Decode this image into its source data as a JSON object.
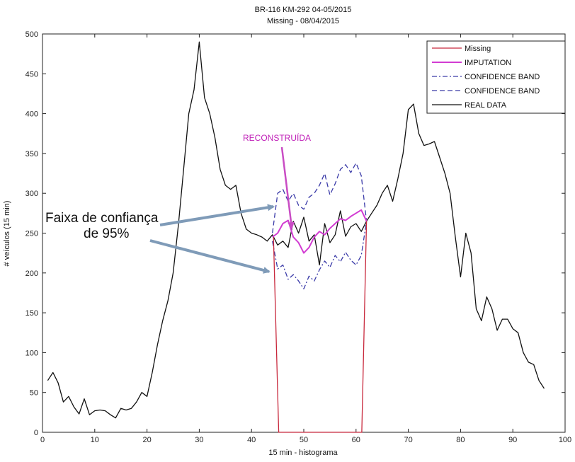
{
  "chart_data": {
    "type": "line",
    "title": "BR-116 KM-292 04-05/2015",
    "subtitle": "Missing - 08/04/2015",
    "xlabel": "15 min - histograma",
    "ylabel": "# veículos (15 min)",
    "xlim": [
      0,
      100
    ],
    "ylim": [
      0,
      500
    ],
    "xticks": [
      0,
      10,
      20,
      30,
      40,
      50,
      60,
      70,
      80,
      90,
      100
    ],
    "yticks": [
      0,
      50,
      100,
      150,
      200,
      250,
      300,
      350,
      400,
      450,
      500
    ],
    "legend_position": "top-right",
    "grid": false,
    "series": [
      {
        "name": "Missing",
        "color": "#c8283c",
        "style": "solid",
        "x": [
          44.2,
          45.2,
          61.1,
          62.0
        ],
        "y": [
          245,
          0,
          0,
          265
        ]
      },
      {
        "name": "IMPUTATION",
        "color": "#d23cd2",
        "style": "solid",
        "x": [
          44,
          45,
          46,
          47,
          48,
          49,
          50,
          51,
          52,
          53,
          54,
          55,
          56,
          57,
          58,
          59,
          60,
          61,
          62
        ],
        "y": [
          245,
          250,
          262,
          266,
          245,
          238,
          225,
          232,
          245,
          252,
          248,
          256,
          262,
          268,
          266,
          271,
          275,
          279,
          265
        ]
      },
      {
        "name": "CONFIDENCE BAND",
        "color": "#3a3aa8",
        "style": "dashdot",
        "x": [
          44,
          45,
          46,
          47,
          48,
          49,
          50,
          51,
          52,
          53,
          54,
          55,
          56,
          57,
          58,
          59,
          60,
          61,
          62
        ],
        "y": [
          240,
          205,
          210,
          192,
          198,
          190,
          180,
          196,
          190,
          204,
          215,
          207,
          222,
          214,
          226,
          216,
          210,
          222,
          265
        ]
      },
      {
        "name": "CONFIDENCE BAND",
        "color": "#3a3aa8",
        "style": "dashed",
        "x": [
          44,
          45,
          46,
          47,
          48,
          49,
          50,
          51,
          52,
          53,
          54,
          55,
          56,
          57,
          58,
          59,
          60,
          61,
          62
        ],
        "y": [
          250,
          300,
          305,
          290,
          300,
          285,
          280,
          295,
          300,
          310,
          325,
          298,
          312,
          330,
          336,
          326,
          338,
          322,
          265
        ]
      },
      {
        "name": "REAL DATA",
        "color": "#111111",
        "style": "solid",
        "x": [
          1,
          2,
          3,
          4,
          5,
          6,
          7,
          8,
          9,
          10,
          11,
          12,
          13,
          14,
          15,
          16,
          17,
          18,
          19,
          20,
          21,
          22,
          23,
          24,
          25,
          26,
          27,
          28,
          29,
          30,
          31,
          32,
          33,
          34,
          35,
          36,
          37,
          38,
          39,
          40,
          41,
          42,
          43,
          44,
          45,
          46,
          47,
          48,
          49,
          50,
          51,
          52,
          53,
          54,
          55,
          56,
          57,
          58,
          59,
          60,
          61,
          62,
          63,
          64,
          65,
          66,
          67,
          68,
          69,
          70,
          71,
          72,
          73,
          74,
          75,
          76,
          77,
          78,
          79,
          80,
          81,
          82,
          83,
          84,
          85,
          86,
          87,
          88,
          89,
          90,
          91,
          92,
          93,
          94,
          95,
          96
        ],
        "y": [
          65,
          75,
          62,
          38,
          45,
          32,
          23,
          42,
          22,
          27,
          28,
          27,
          22,
          18,
          30,
          28,
          30,
          38,
          50,
          45,
          75,
          110,
          140,
          165,
          200,
          260,
          330,
          400,
          430,
          490,
          420,
          400,
          370,
          330,
          310,
          305,
          310,
          275,
          255,
          250,
          248,
          245,
          240,
          248,
          235,
          240,
          232,
          265,
          250,
          270,
          240,
          248,
          210,
          262,
          238,
          248,
          278,
          246,
          258,
          262,
          252,
          265,
          275,
          285,
          300,
          310,
          290,
          318,
          350,
          405,
          412,
          375,
          360,
          362,
          365,
          345,
          325,
          300,
          245,
          195,
          250,
          225,
          155,
          140,
          170,
          155,
          128,
          142,
          142,
          130,
          125,
          100,
          88,
          85,
          65,
          55
        ]
      }
    ],
    "annotations": [
      {
        "text": "Faixa de confiança",
        "color": "#111111"
      },
      {
        "text": "de 95%",
        "color": "#111111"
      },
      {
        "text": "RECONSTRUÍDA",
        "color": "#c020b8"
      }
    ]
  }
}
